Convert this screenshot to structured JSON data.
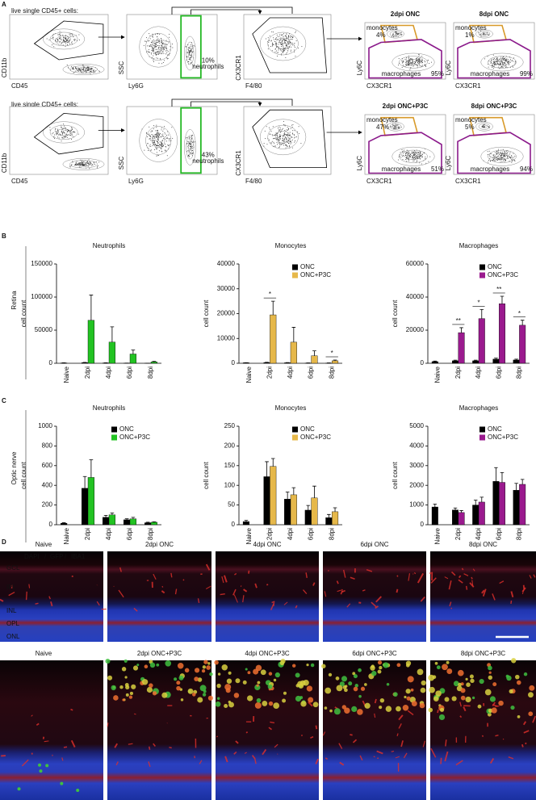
{
  "panel_a": {
    "label": "A",
    "rows": [
      {
        "header": "live single CD45+ cells:",
        "plots": [
          {
            "y_label": "CD11b",
            "x_label": "CD45"
          },
          {
            "y_label": "SSC",
            "x_label": "Ly6G",
            "gate_pct": "10%",
            "gate_name": "neutrophils"
          },
          {
            "y_label": "CX3CR1",
            "x_label": "F4/80"
          },
          {
            "title": "2dpi ONC",
            "y_label": "Ly6C",
            "x_label": "CX3CR1",
            "mono_name": "monocytes",
            "mono_pct": "4%",
            "mac_name": "macrophages",
            "mac_pct": "95%"
          },
          {
            "title": "8dpi ONC",
            "y_label": "Ly6C",
            "x_label": "CX3CR1",
            "mono_name": "monocytes",
            "mono_pct": "1%",
            "mac_name": "macrophages",
            "mac_pct": "99%"
          }
        ]
      },
      {
        "header": "live single CD45+ cells:",
        "plots": [
          {
            "y_label": "CD11b",
            "x_label": "CD45"
          },
          {
            "y_label": "SSC",
            "x_label": "Ly6G",
            "gate_pct": "43%",
            "gate_name": "neutrophils"
          },
          {
            "y_label": "CX3CR1",
            "x_label": "F4/80"
          },
          {
            "title": "2dpi ONC+P3C",
            "y_label": "Ly6C",
            "x_label": "CX3CR1",
            "mono_name": "monocytes",
            "mono_pct": "47%",
            "mac_name": "macrophages",
            "mac_pct": "51%"
          },
          {
            "title": "8dpi ONC+P3C",
            "y_label": "Ly6C",
            "x_label": "CX3CR1",
            "mono_name": "monocytes",
            "mono_pct": "5%",
            "mac_name": "macrophages",
            "mac_pct": "94%"
          }
        ]
      }
    ]
  },
  "panel_b": {
    "label": "B",
    "tissue": "Retina"
  },
  "panel_c": {
    "label": "C",
    "tissue": "Optic nerve"
  },
  "chart_data": [
    {
      "type": "bar",
      "title": "Neutrophils",
      "y_label": "cell count",
      "categories": [
        "Naive",
        "2dpi",
        "4dpi",
        "6dpi",
        "8dpi"
      ],
      "ylim": [
        0,
        150000
      ],
      "yticks": [
        0,
        50000,
        100000,
        150000
      ],
      "series": [
        {
          "color": "#000000",
          "values": [
            500,
            1000,
            500,
            200,
            100
          ],
          "errors": [
            200,
            400,
            200,
            100,
            50
          ]
        },
        {
          "color": "#22c322",
          "values": [
            null,
            65000,
            32000,
            14000,
            2000
          ],
          "errors": [
            null,
            38000,
            23000,
            6000,
            800
          ]
        }
      ]
    },
    {
      "type": "bar",
      "title": "Monocytes",
      "y_label": "cell count",
      "categories": [
        "Naive",
        "2dpi",
        "4dpi",
        "6dpi",
        "8dpi"
      ],
      "ylim": [
        0,
        40000
      ],
      "yticks": [
        0,
        10000,
        20000,
        30000,
        40000
      ],
      "legend": "upper right",
      "series": [
        {
          "name": "ONC",
          "color": "#000000",
          "values": [
            200,
            300,
            200,
            100,
            100
          ],
          "errors": [
            50,
            100,
            80,
            50,
            40
          ]
        },
        {
          "name": "ONC+P3C",
          "color": "#e6b84a",
          "values": [
            null,
            19500,
            8500,
            3000,
            1000
          ],
          "errors": [
            null,
            5500,
            6000,
            2000,
            300
          ]
        }
      ],
      "annotations": [
        {
          "text": "*",
          "category": "2dpi"
        },
        {
          "text": "*",
          "category": "8dpi"
        }
      ]
    },
    {
      "type": "bar",
      "title": "Macrophages",
      "y_label": "cell count",
      "categories": [
        "Naive",
        "2dpi",
        "4dpi",
        "6dpi",
        "8dpi"
      ],
      "ylim": [
        0,
        60000
      ],
      "yticks": [
        0,
        20000,
        40000,
        60000
      ],
      "legend": "upper right",
      "series": [
        {
          "name": "ONC",
          "color": "#000000",
          "values": [
            1000,
            1500,
            1500,
            2500,
            2000
          ],
          "errors": [
            300,
            400,
            400,
            600,
            500
          ]
        },
        {
          "name": "ONC+P3C",
          "color": "#9a1a8e",
          "values": [
            null,
            18500,
            27000,
            36000,
            23000
          ],
          "errors": [
            null,
            3000,
            5500,
            4500,
            3000
          ]
        }
      ],
      "annotations": [
        {
          "text": "**",
          "category": "2dpi"
        },
        {
          "text": "*",
          "category": "4dpi"
        },
        {
          "text": "**",
          "category": "6dpi"
        },
        {
          "text": "*",
          "category": "8dpi"
        }
      ]
    },
    {
      "type": "bar",
      "title": "Neutrophils",
      "y_label": "cell count",
      "categories": [
        "Naive",
        "2dpi",
        "4dpi",
        "6dpi",
        "8dpi"
      ],
      "ylim": [
        0,
        1000
      ],
      "yticks": [
        0,
        200,
        400,
        600,
        800,
        1000
      ],
      "legend": "upper right",
      "series": [
        {
          "name": "ONC",
          "color": "#000000",
          "values": [
            15,
            370,
            75,
            50,
            20
          ],
          "errors": [
            5,
            120,
            20,
            10,
            5
          ]
        },
        {
          "name": "ONC+P3C",
          "color": "#22c322",
          "values": [
            null,
            480,
            100,
            60,
            25
          ],
          "errors": [
            null,
            180,
            20,
            15,
            5
          ]
        }
      ]
    },
    {
      "type": "bar",
      "title": "Monocytes",
      "y_label": "cell count",
      "categories": [
        "Naive",
        "2dpi",
        "4dpi",
        "6dpi",
        "8dpi"
      ],
      "ylim": [
        0,
        250
      ],
      "yticks": [
        0,
        50,
        100,
        150,
        200,
        250
      ],
      "legend": "upper right",
      "series": [
        {
          "name": "ONC",
          "color": "#000000",
          "values": [
            8,
            122,
            65,
            37,
            18
          ],
          "errors": [
            3,
            38,
            18,
            12,
            8
          ]
        },
        {
          "name": "ONC+P3C",
          "color": "#e6b84a",
          "values": [
            null,
            148,
            76,
            68,
            33
          ],
          "errors": [
            null,
            20,
            18,
            30,
            10
          ]
        }
      ]
    },
    {
      "type": "bar",
      "title": "Macrophages",
      "y_label": "cell count",
      "categories": [
        "Naive",
        "2dpi",
        "4dpi",
        "6dpi",
        "8dpi"
      ],
      "ylim": [
        0,
        5000
      ],
      "yticks": [
        0,
        1000,
        2000,
        3000,
        4000,
        5000
      ],
      "legend": "upper right",
      "series": [
        {
          "name": "ONC",
          "color": "#000000",
          "values": [
            900,
            750,
            1000,
            2200,
            1750
          ],
          "errors": [
            150,
            100,
            250,
            700,
            350
          ]
        },
        {
          "name": "ONC+P3C",
          "color": "#9a1a8e",
          "values": [
            null,
            620,
            1150,
            2150,
            2050
          ],
          "errors": [
            null,
            100,
            250,
            500,
            250
          ]
        }
      ]
    }
  ],
  "panel_d": {
    "label": "D",
    "stain": [
      "DAPI",
      "/",
      "GFP",
      "/",
      "IBA1"
    ],
    "layers": [
      "GCL",
      "IPL",
      "INL",
      "OPL",
      "ONL"
    ],
    "rows": [
      [
        "Naive",
        "2dpi ONC",
        "4dpi ONC",
        "6dpi ONC",
        "8dpi ONC"
      ],
      [
        "Naive",
        "2dpi ONC+P3C",
        "4dpi ONC+P3C",
        "6dpi ONC+P3C",
        "8dpi ONC+P3C"
      ]
    ]
  }
}
